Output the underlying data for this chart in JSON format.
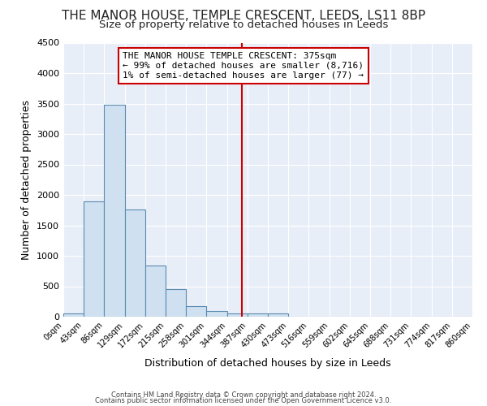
{
  "title": "THE MANOR HOUSE, TEMPLE CRESCENT, LEEDS, LS11 8BP",
  "subtitle": "Size of property relative to detached houses in Leeds",
  "xlabel": "Distribution of detached houses by size in Leeds",
  "ylabel": "Number of detached properties",
  "bar_color": "#cfe0f0",
  "bar_edge_color": "#5a8ab0",
  "plot_bg_color": "#e8eef8",
  "fig_bg_color": "#ffffff",
  "grid_color": "#ffffff",
  "bin_edges": [
    0,
    43,
    86,
    129,
    172,
    215,
    258,
    301,
    344,
    387,
    430,
    473,
    516,
    559,
    602,
    645,
    688,
    731,
    774,
    817,
    860
  ],
  "bar_heights": [
    50,
    1900,
    3480,
    1760,
    840,
    450,
    170,
    100,
    60,
    60,
    50,
    0,
    0,
    0,
    0,
    0,
    0,
    0,
    0,
    0
  ],
  "red_line_x": 375,
  "annotation_title": "THE MANOR HOUSE TEMPLE CRESCENT: 375sqm",
  "annotation_line2": "← 99% of detached houses are smaller (8,716)",
  "annotation_line3": "1% of semi-detached houses are larger (77) →",
  "annotation_box_color": "#ffffff",
  "annotation_box_edge_color": "#cc0000",
  "red_line_color": "#cc0000",
  "ylim": [
    0,
    4500
  ],
  "yticks": [
    0,
    500,
    1000,
    1500,
    2000,
    2500,
    3000,
    3500,
    4000,
    4500
  ],
  "footnote_line1": "Contains HM Land Registry data © Crown copyright and database right 2024.",
  "footnote_line2": "Contains public sector information licensed under the Open Government Licence v3.0.",
  "title_fontsize": 11,
  "subtitle_fontsize": 9.5
}
